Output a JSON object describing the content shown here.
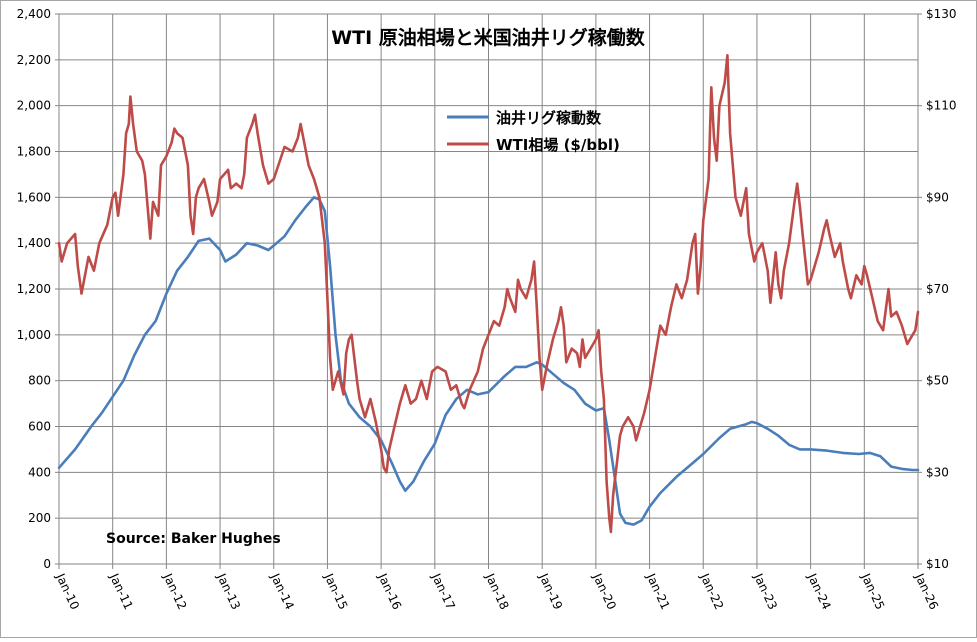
{
  "chart_data": {
    "type": "line",
    "title": "WTI 原油相場と米国油井リグ稼働数",
    "annotation": "Source: Baker Hughes",
    "x_tick_labels": [
      "Jan-10",
      "Jan-11",
      "Jan-12",
      "Jan-13",
      "Jan-14",
      "Jan-15",
      "Jan-16",
      "Jan-17",
      "Jan-18",
      "Jan-19",
      "Jan-20",
      "Jan-21",
      "Jan-22",
      "Jan-23",
      "Jan-24",
      "Jan-25",
      "Jan-26"
    ],
    "x_range": [
      2010.0,
      2026.0
    ],
    "y_left": {
      "range": [
        0,
        2400
      ],
      "ticks": [
        0,
        200,
        400,
        600,
        800,
        1000,
        1200,
        1400,
        1600,
        1800,
        2000,
        2200,
        2400
      ],
      "tick_labels": [
        "0",
        "200",
        "400",
        "600",
        "800",
        "1,000",
        "1,200",
        "1,400",
        "1,600",
        "1,800",
        "2,000",
        "2,200",
        "2,400"
      ]
    },
    "y_right": {
      "range": [
        10,
        130
      ],
      "ticks": [
        10,
        30,
        50,
        70,
        90,
        110,
        130
      ],
      "tick_labels": [
        "$10",
        "$30",
        "$50",
        "$70",
        "$90",
        "$110",
        "$130"
      ]
    },
    "grid": true,
    "legend_position": "top-center",
    "series": [
      {
        "name": "油井リグ稼動数",
        "axis": "left",
        "color": "#4a7ebb",
        "points": [
          [
            2010.0,
            420
          ],
          [
            2010.3,
            500
          ],
          [
            2010.6,
            600
          ],
          [
            2010.8,
            660
          ],
          [
            2011.0,
            730
          ],
          [
            2011.2,
            800
          ],
          [
            2011.4,
            910
          ],
          [
            2011.6,
            1000
          ],
          [
            2011.8,
            1060
          ],
          [
            2012.0,
            1180
          ],
          [
            2012.2,
            1280
          ],
          [
            2012.4,
            1340
          ],
          [
            2012.6,
            1410
          ],
          [
            2012.8,
            1420
          ],
          [
            2013.0,
            1370
          ],
          [
            2013.1,
            1320
          ],
          [
            2013.3,
            1350
          ],
          [
            2013.5,
            1400
          ],
          [
            2013.7,
            1390
          ],
          [
            2013.9,
            1370
          ],
          [
            2014.0,
            1390
          ],
          [
            2014.2,
            1430
          ],
          [
            2014.4,
            1500
          ],
          [
            2014.6,
            1560
          ],
          [
            2014.75,
            1600
          ],
          [
            2014.85,
            1590
          ],
          [
            2014.95,
            1540
          ],
          [
            2015.05,
            1300
          ],
          [
            2015.15,
            1000
          ],
          [
            2015.25,
            800
          ],
          [
            2015.4,
            700
          ],
          [
            2015.6,
            640
          ],
          [
            2015.8,
            600
          ],
          [
            2016.0,
            540
          ],
          [
            2016.2,
            440
          ],
          [
            2016.35,
            360
          ],
          [
            2016.45,
            320
          ],
          [
            2016.6,
            360
          ],
          [
            2016.8,
            450
          ],
          [
            2017.0,
            525
          ],
          [
            2017.2,
            650
          ],
          [
            2017.4,
            720
          ],
          [
            2017.6,
            760
          ],
          [
            2017.8,
            740
          ],
          [
            2018.0,
            750
          ],
          [
            2018.3,
            820
          ],
          [
            2018.5,
            860
          ],
          [
            2018.7,
            860
          ],
          [
            2018.9,
            880
          ],
          [
            2019.0,
            870
          ],
          [
            2019.2,
            830
          ],
          [
            2019.4,
            790
          ],
          [
            2019.6,
            760
          ],
          [
            2019.8,
            700
          ],
          [
            2020.0,
            670
          ],
          [
            2020.15,
            680
          ],
          [
            2020.25,
            540
          ],
          [
            2020.35,
            380
          ],
          [
            2020.45,
            220
          ],
          [
            2020.55,
            180
          ],
          [
            2020.7,
            172
          ],
          [
            2020.85,
            190
          ],
          [
            2021.0,
            250
          ],
          [
            2021.2,
            310
          ],
          [
            2021.5,
            380
          ],
          [
            2021.8,
            440
          ],
          [
            2022.0,
            480
          ],
          [
            2022.3,
            550
          ],
          [
            2022.5,
            590
          ],
          [
            2022.8,
            610
          ],
          [
            2022.9,
            620
          ],
          [
            2023.0,
            615
          ],
          [
            2023.2,
            590
          ],
          [
            2023.4,
            560
          ],
          [
            2023.6,
            520
          ],
          [
            2023.8,
            500
          ],
          [
            2024.0,
            500
          ],
          [
            2024.3,
            495
          ],
          [
            2024.6,
            485
          ],
          [
            2024.9,
            480
          ],
          [
            2025.1,
            485
          ],
          [
            2025.3,
            470
          ],
          [
            2025.5,
            425
          ],
          [
            2025.7,
            415
          ],
          [
            2025.9,
            410
          ],
          [
            2026.0,
            410
          ]
        ]
      },
      {
        "name": "WTI相場 ($/bbl)",
        "axis": "right",
        "color": "#be4b48",
        "points": [
          [
            2010.0,
            80
          ],
          [
            2010.05,
            76
          ],
          [
            2010.15,
            80
          ],
          [
            2010.3,
            82
          ],
          [
            2010.35,
            75
          ],
          [
            2010.42,
            69
          ],
          [
            2010.55,
            77
          ],
          [
            2010.65,
            74
          ],
          [
            2010.75,
            80
          ],
          [
            2010.9,
            84
          ],
          [
            2011.0,
            90
          ],
          [
            2011.05,
            91
          ],
          [
            2011.1,
            86
          ],
          [
            2011.2,
            95
          ],
          [
            2011.25,
            104
          ],
          [
            2011.3,
            106
          ],
          [
            2011.33,
            112
          ],
          [
            2011.38,
            106
          ],
          [
            2011.45,
            100
          ],
          [
            2011.55,
            98
          ],
          [
            2011.6,
            95
          ],
          [
            2011.65,
            88
          ],
          [
            2011.7,
            81
          ],
          [
            2011.75,
            89
          ],
          [
            2011.85,
            86
          ],
          [
            2011.9,
            97
          ],
          [
            2012.0,
            99
          ],
          [
            2012.1,
            102
          ],
          [
            2012.15,
            105
          ],
          [
            2012.2,
            104
          ],
          [
            2012.3,
            103
          ],
          [
            2012.4,
            97
          ],
          [
            2012.45,
            86
          ],
          [
            2012.5,
            82
          ],
          [
            2012.55,
            90
          ],
          [
            2012.6,
            92
          ],
          [
            2012.7,
            94
          ],
          [
            2012.8,
            89
          ],
          [
            2012.85,
            86
          ],
          [
            2012.95,
            89
          ],
          [
            2013.0,
            94
          ],
          [
            2013.15,
            96
          ],
          [
            2013.2,
            92
          ],
          [
            2013.3,
            93
          ],
          [
            2013.4,
            92
          ],
          [
            2013.45,
            95
          ],
          [
            2013.5,
            103
          ],
          [
            2013.6,
            106
          ],
          [
            2013.65,
            108
          ],
          [
            2013.7,
            104
          ],
          [
            2013.8,
            97
          ],
          [
            2013.9,
            93
          ],
          [
            2014.0,
            94
          ],
          [
            2014.2,
            101
          ],
          [
            2014.35,
            100
          ],
          [
            2014.45,
            103
          ],
          [
            2014.5,
            106
          ],
          [
            2014.55,
            103
          ],
          [
            2014.65,
            97
          ],
          [
            2014.75,
            94
          ],
          [
            2014.85,
            90
          ],
          [
            2014.95,
            80
          ],
          [
            2015.0,
            68
          ],
          [
            2015.05,
            55
          ],
          [
            2015.1,
            48
          ],
          [
            2015.2,
            52
          ],
          [
            2015.3,
            47
          ],
          [
            2015.35,
            56
          ],
          [
            2015.4,
            59
          ],
          [
            2015.45,
            60
          ],
          [
            2015.5,
            55
          ],
          [
            2015.55,
            50
          ],
          [
            2015.6,
            46
          ],
          [
            2015.7,
            42
          ],
          [
            2015.8,
            46
          ],
          [
            2015.9,
            41
          ],
          [
            2016.0,
            35
          ],
          [
            2016.05,
            31
          ],
          [
            2016.1,
            30
          ],
          [
            2016.15,
            35
          ],
          [
            2016.25,
            40
          ],
          [
            2016.35,
            45
          ],
          [
            2016.45,
            49
          ],
          [
            2016.55,
            45
          ],
          [
            2016.65,
            46
          ],
          [
            2016.75,
            50
          ],
          [
            2016.85,
            46
          ],
          [
            2016.95,
            52
          ],
          [
            2017.05,
            53
          ],
          [
            2017.2,
            52
          ],
          [
            2017.3,
            48
          ],
          [
            2017.4,
            49
          ],
          [
            2017.5,
            45
          ],
          [
            2017.55,
            44
          ],
          [
            2017.65,
            48
          ],
          [
            2017.8,
            52
          ],
          [
            2017.9,
            57
          ],
          [
            2018.0,
            60
          ],
          [
            2018.1,
            63
          ],
          [
            2018.2,
            62
          ],
          [
            2018.3,
            66
          ],
          [
            2018.35,
            70
          ],
          [
            2018.4,
            68
          ],
          [
            2018.5,
            65
          ],
          [
            2018.55,
            72
          ],
          [
            2018.6,
            70
          ],
          [
            2018.7,
            68
          ],
          [
            2018.8,
            72
          ],
          [
            2018.85,
            76
          ],
          [
            2018.9,
            66
          ],
          [
            2018.95,
            55
          ],
          [
            2019.0,
            48
          ],
          [
            2019.05,
            51
          ],
          [
            2019.1,
            54
          ],
          [
            2019.2,
            59
          ],
          [
            2019.3,
            63
          ],
          [
            2019.35,
            66
          ],
          [
            2019.4,
            62
          ],
          [
            2019.45,
            54
          ],
          [
            2019.55,
            57
          ],
          [
            2019.65,
            56
          ],
          [
            2019.7,
            53
          ],
          [
            2019.75,
            59
          ],
          [
            2019.8,
            55
          ],
          [
            2019.9,
            57
          ],
          [
            2020.0,
            59
          ],
          [
            2020.05,
            61
          ],
          [
            2020.1,
            52
          ],
          [
            2020.15,
            46
          ],
          [
            2020.2,
            28
          ],
          [
            2020.25,
            20
          ],
          [
            2020.28,
            17
          ],
          [
            2020.32,
            25
          ],
          [
            2020.4,
            33
          ],
          [
            2020.45,
            38
          ],
          [
            2020.5,
            40
          ],
          [
            2020.6,
            42
          ],
          [
            2020.7,
            40
          ],
          [
            2020.75,
            37
          ],
          [
            2020.8,
            39
          ],
          [
            2020.9,
            43
          ],
          [
            2021.0,
            48
          ],
          [
            2021.1,
            55
          ],
          [
            2021.2,
            62
          ],
          [
            2021.3,
            60
          ],
          [
            2021.4,
            66
          ],
          [
            2021.5,
            71
          ],
          [
            2021.6,
            68
          ],
          [
            2021.7,
            72
          ],
          [
            2021.8,
            80
          ],
          [
            2021.85,
            82
          ],
          [
            2021.9,
            69
          ],
          [
            2021.95,
            75
          ],
          [
            2022.0,
            85
          ],
          [
            2022.1,
            94
          ],
          [
            2022.15,
            114
          ],
          [
            2022.2,
            103
          ],
          [
            2022.25,
            98
          ],
          [
            2022.3,
            110
          ],
          [
            2022.4,
            115
          ],
          [
            2022.45,
            121
          ],
          [
            2022.5,
            104
          ],
          [
            2022.6,
            90
          ],
          [
            2022.7,
            86
          ],
          [
            2022.8,
            92
          ],
          [
            2022.85,
            82
          ],
          [
            2022.95,
            76
          ],
          [
            2023.0,
            78
          ],
          [
            2023.1,
            80
          ],
          [
            2023.2,
            74
          ],
          [
            2023.25,
            67
          ],
          [
            2023.35,
            78
          ],
          [
            2023.4,
            71
          ],
          [
            2023.45,
            68
          ],
          [
            2023.5,
            74
          ],
          [
            2023.6,
            80
          ],
          [
            2023.7,
            89
          ],
          [
            2023.75,
            93
          ],
          [
            2023.8,
            88
          ],
          [
            2023.85,
            82
          ],
          [
            2023.95,
            71
          ],
          [
            2024.0,
            72
          ],
          [
            2024.15,
            78
          ],
          [
            2024.25,
            83
          ],
          [
            2024.3,
            85
          ],
          [
            2024.35,
            82
          ],
          [
            2024.45,
            77
          ],
          [
            2024.55,
            80
          ],
          [
            2024.6,
            76
          ],
          [
            2024.7,
            70
          ],
          [
            2024.75,
            68
          ],
          [
            2024.85,
            73
          ],
          [
            2024.95,
            71
          ],
          [
            2025.0,
            75
          ],
          [
            2025.05,
            73
          ],
          [
            2025.15,
            68
          ],
          [
            2025.25,
            63
          ],
          [
            2025.35,
            61
          ],
          [
            2025.45,
            70
          ],
          [
            2025.5,
            64
          ],
          [
            2025.6,
            65
          ],
          [
            2025.7,
            62
          ],
          [
            2025.8,
            58
          ],
          [
            2025.9,
            60
          ],
          [
            2025.95,
            61
          ],
          [
            2026.0,
            65
          ]
        ]
      }
    ]
  }
}
